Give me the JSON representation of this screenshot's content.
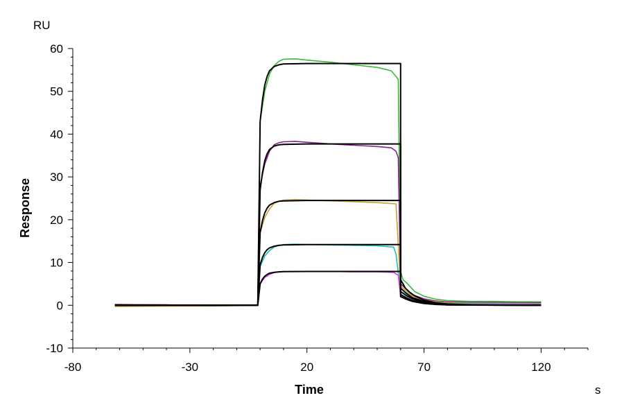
{
  "chart_data": {
    "type": "line",
    "title": "",
    "xlabel": "Time",
    "ylabel": "Response",
    "x_unit": "s",
    "y_unit": "RU",
    "xlim": [
      -80,
      140
    ],
    "ylim": [
      -10,
      60
    ],
    "x_ticks": [
      -80,
      -30,
      20,
      70,
      120
    ],
    "y_ticks": [
      -10,
      0,
      10,
      20,
      30,
      40,
      50,
      60
    ],
    "x_minor_step": 10,
    "y_minor_step": 2,
    "grid": false,
    "legend": "none",
    "series": [
      {
        "color": "#3cb83c",
        "points": [
          [
            -62,
            0.2
          ],
          [
            -40,
            0.1
          ],
          [
            -20,
            -0.1
          ],
          [
            -1,
            0
          ],
          [
            0,
            43
          ],
          [
            2,
            50
          ],
          [
            4,
            54
          ],
          [
            6,
            56
          ],
          [
            8,
            57
          ],
          [
            10,
            57.5
          ],
          [
            15,
            57.6
          ],
          [
            20,
            57.3
          ],
          [
            30,
            56.8
          ],
          [
            40,
            56.2
          ],
          [
            50,
            55.6
          ],
          [
            56,
            54.8
          ],
          [
            58,
            53.5
          ],
          [
            59,
            52.8
          ],
          [
            60,
            8
          ],
          [
            61,
            6
          ],
          [
            63,
            5
          ],
          [
            66,
            3.2
          ],
          [
            70,
            2.1
          ],
          [
            75,
            1.4
          ],
          [
            80,
            1.1
          ],
          [
            90,
            0.9
          ],
          [
            100,
            0.9
          ],
          [
            110,
            0.8
          ],
          [
            120,
            0.8
          ]
        ]
      },
      {
        "color": "#8b1f8b",
        "points": [
          [
            -62,
            0.2
          ],
          [
            -40,
            0.1
          ],
          [
            -20,
            -0.1
          ],
          [
            -1,
            0
          ],
          [
            0,
            28
          ],
          [
            2,
            33
          ],
          [
            4,
            36
          ],
          [
            6,
            37.5
          ],
          [
            8,
            38
          ],
          [
            10,
            38.2
          ],
          [
            15,
            38.3
          ],
          [
            20,
            38.1
          ],
          [
            30,
            37.7
          ],
          [
            40,
            37.4
          ],
          [
            50,
            37.1
          ],
          [
            56,
            36.8
          ],
          [
            58,
            36
          ],
          [
            59,
            34.5
          ],
          [
            60,
            5
          ],
          [
            62,
            4
          ],
          [
            65,
            2.5
          ],
          [
            70,
            1.5
          ],
          [
            75,
            1.0
          ],
          [
            80,
            0.8
          ],
          [
            90,
            0.7
          ],
          [
            120,
            0.6
          ]
        ]
      },
      {
        "color": "#c9a032",
        "points": [
          [
            -62,
            -0.3
          ],
          [
            -40,
            -0.2
          ],
          [
            -20,
            -0.2
          ],
          [
            -1,
            0
          ],
          [
            0,
            17
          ],
          [
            2,
            20.5
          ],
          [
            4,
            22.5
          ],
          [
            6,
            23.8
          ],
          [
            8,
            24.3
          ],
          [
            10,
            24.6
          ],
          [
            15,
            24.7
          ],
          [
            20,
            24.6
          ],
          [
            30,
            24.4
          ],
          [
            40,
            24.2
          ],
          [
            50,
            24.0
          ],
          [
            58,
            23.7
          ],
          [
            60,
            4.5
          ],
          [
            62,
            3.5
          ],
          [
            65,
            2.2
          ],
          [
            70,
            1.2
          ],
          [
            75,
            0.8
          ],
          [
            80,
            0.6
          ],
          [
            90,
            0.5
          ],
          [
            120,
            0.4
          ]
        ]
      },
      {
        "color": "#1fbcbc",
        "points": [
          [
            -62,
            0.1
          ],
          [
            -40,
            0.1
          ],
          [
            -20,
            -0.1
          ],
          [
            -1,
            0
          ],
          [
            0,
            9
          ],
          [
            2,
            11.5
          ],
          [
            4,
            12.8
          ],
          [
            6,
            13.6
          ],
          [
            8,
            14
          ],
          [
            10,
            14.2
          ],
          [
            15,
            14.3
          ],
          [
            20,
            14.2
          ],
          [
            30,
            14.1
          ],
          [
            40,
            14.0
          ],
          [
            50,
            13.9
          ],
          [
            57,
            13.6
          ],
          [
            58,
            12
          ],
          [
            60,
            3.2
          ],
          [
            62,
            2.6
          ],
          [
            65,
            1.6
          ],
          [
            70,
            0.9
          ],
          [
            75,
            0.6
          ],
          [
            80,
            0.4
          ],
          [
            120,
            0.3
          ]
        ]
      },
      {
        "color": "#e03ce0",
        "points": [
          [
            -62,
            0.1
          ],
          [
            -40,
            0.1
          ],
          [
            -20,
            0
          ],
          [
            -1,
            0
          ],
          [
            0,
            5
          ],
          [
            2,
            6.5
          ],
          [
            4,
            7.2
          ],
          [
            6,
            7.6
          ],
          [
            8,
            7.8
          ],
          [
            10,
            7.9
          ],
          [
            20,
            7.9
          ],
          [
            30,
            7.9
          ],
          [
            40,
            7.8
          ],
          [
            50,
            7.8
          ],
          [
            57,
            7.7
          ],
          [
            59,
            7.0
          ],
          [
            60,
            2.2
          ],
          [
            62,
            1.8
          ],
          [
            65,
            1.1
          ],
          [
            70,
            0.6
          ],
          [
            75,
            0.3
          ],
          [
            80,
            0.2
          ],
          [
            120,
            0.2
          ]
        ]
      },
      {
        "color": "#000000",
        "points": [
          [
            -62,
            0
          ],
          [
            -1,
            0
          ],
          [
            0,
            43
          ],
          [
            1,
            48
          ],
          [
            2,
            51.5
          ],
          [
            3,
            53.5
          ],
          [
            4,
            54.8
          ],
          [
            6,
            55.8
          ],
          [
            8,
            56.2
          ],
          [
            10,
            56.4
          ],
          [
            20,
            56.5
          ],
          [
            60,
            56.5
          ],
          [
            60,
            6
          ],
          [
            61,
            5
          ],
          [
            62,
            4
          ],
          [
            64,
            3
          ],
          [
            66,
            2.2
          ],
          [
            70,
            1.2
          ],
          [
            75,
            0.6
          ],
          [
            80,
            0.3
          ],
          [
            90,
            0.1
          ],
          [
            120,
            0
          ]
        ]
      },
      {
        "color": "#000000",
        "points": [
          [
            -62,
            0
          ],
          [
            -1,
            0
          ],
          [
            0,
            27
          ],
          [
            1,
            31
          ],
          [
            2,
            33.8
          ],
          [
            3,
            35.4
          ],
          [
            4,
            36.4
          ],
          [
            6,
            37.2
          ],
          [
            8,
            37.5
          ],
          [
            10,
            37.6
          ],
          [
            20,
            37.7
          ],
          [
            60,
            37.7
          ],
          [
            60,
            4
          ],
          [
            62,
            3
          ],
          [
            65,
            1.8
          ],
          [
            70,
            0.9
          ],
          [
            75,
            0.45
          ],
          [
            80,
            0.2
          ],
          [
            90,
            0.05
          ],
          [
            120,
            0
          ]
        ]
      },
      {
        "color": "#000000",
        "points": [
          [
            -62,
            0
          ],
          [
            -1,
            0
          ],
          [
            0,
            17
          ],
          [
            1,
            19.8
          ],
          [
            2,
            21.6
          ],
          [
            3,
            22.7
          ],
          [
            4,
            23.4
          ],
          [
            6,
            24.0
          ],
          [
            8,
            24.3
          ],
          [
            10,
            24.4
          ],
          [
            20,
            24.5
          ],
          [
            60,
            24.5
          ],
          [
            60,
            3.2
          ],
          [
            62,
            2.4
          ],
          [
            65,
            1.5
          ],
          [
            70,
            0.7
          ],
          [
            75,
            0.35
          ],
          [
            80,
            0.15
          ],
          [
            90,
            0.05
          ],
          [
            120,
            0
          ]
        ]
      },
      {
        "color": "#000000",
        "points": [
          [
            -62,
            0
          ],
          [
            -1,
            0
          ],
          [
            0,
            9.5
          ],
          [
            1,
            11.2
          ],
          [
            2,
            12.3
          ],
          [
            3,
            13.0
          ],
          [
            4,
            13.4
          ],
          [
            6,
            13.8
          ],
          [
            8,
            14.0
          ],
          [
            10,
            14.1
          ],
          [
            20,
            14.2
          ],
          [
            60,
            14.2
          ],
          [
            60,
            2.5
          ],
          [
            62,
            1.9
          ],
          [
            65,
            1.1
          ],
          [
            70,
            0.5
          ],
          [
            75,
            0.25
          ],
          [
            80,
            0.1
          ],
          [
            120,
            0
          ]
        ]
      },
      {
        "color": "#000000",
        "points": [
          [
            -62,
            0
          ],
          [
            -1,
            0
          ],
          [
            0,
            5
          ],
          [
            1,
            6.1
          ],
          [
            2,
            6.8
          ],
          [
            3,
            7.2
          ],
          [
            4,
            7.5
          ],
          [
            6,
            7.7
          ],
          [
            8,
            7.8
          ],
          [
            10,
            7.85
          ],
          [
            20,
            7.9
          ],
          [
            60,
            7.9
          ],
          [
            60,
            2
          ],
          [
            62,
            1.5
          ],
          [
            65,
            0.9
          ],
          [
            70,
            0.4
          ],
          [
            75,
            0.2
          ],
          [
            80,
            0.1
          ],
          [
            120,
            0
          ]
        ]
      }
    ]
  }
}
